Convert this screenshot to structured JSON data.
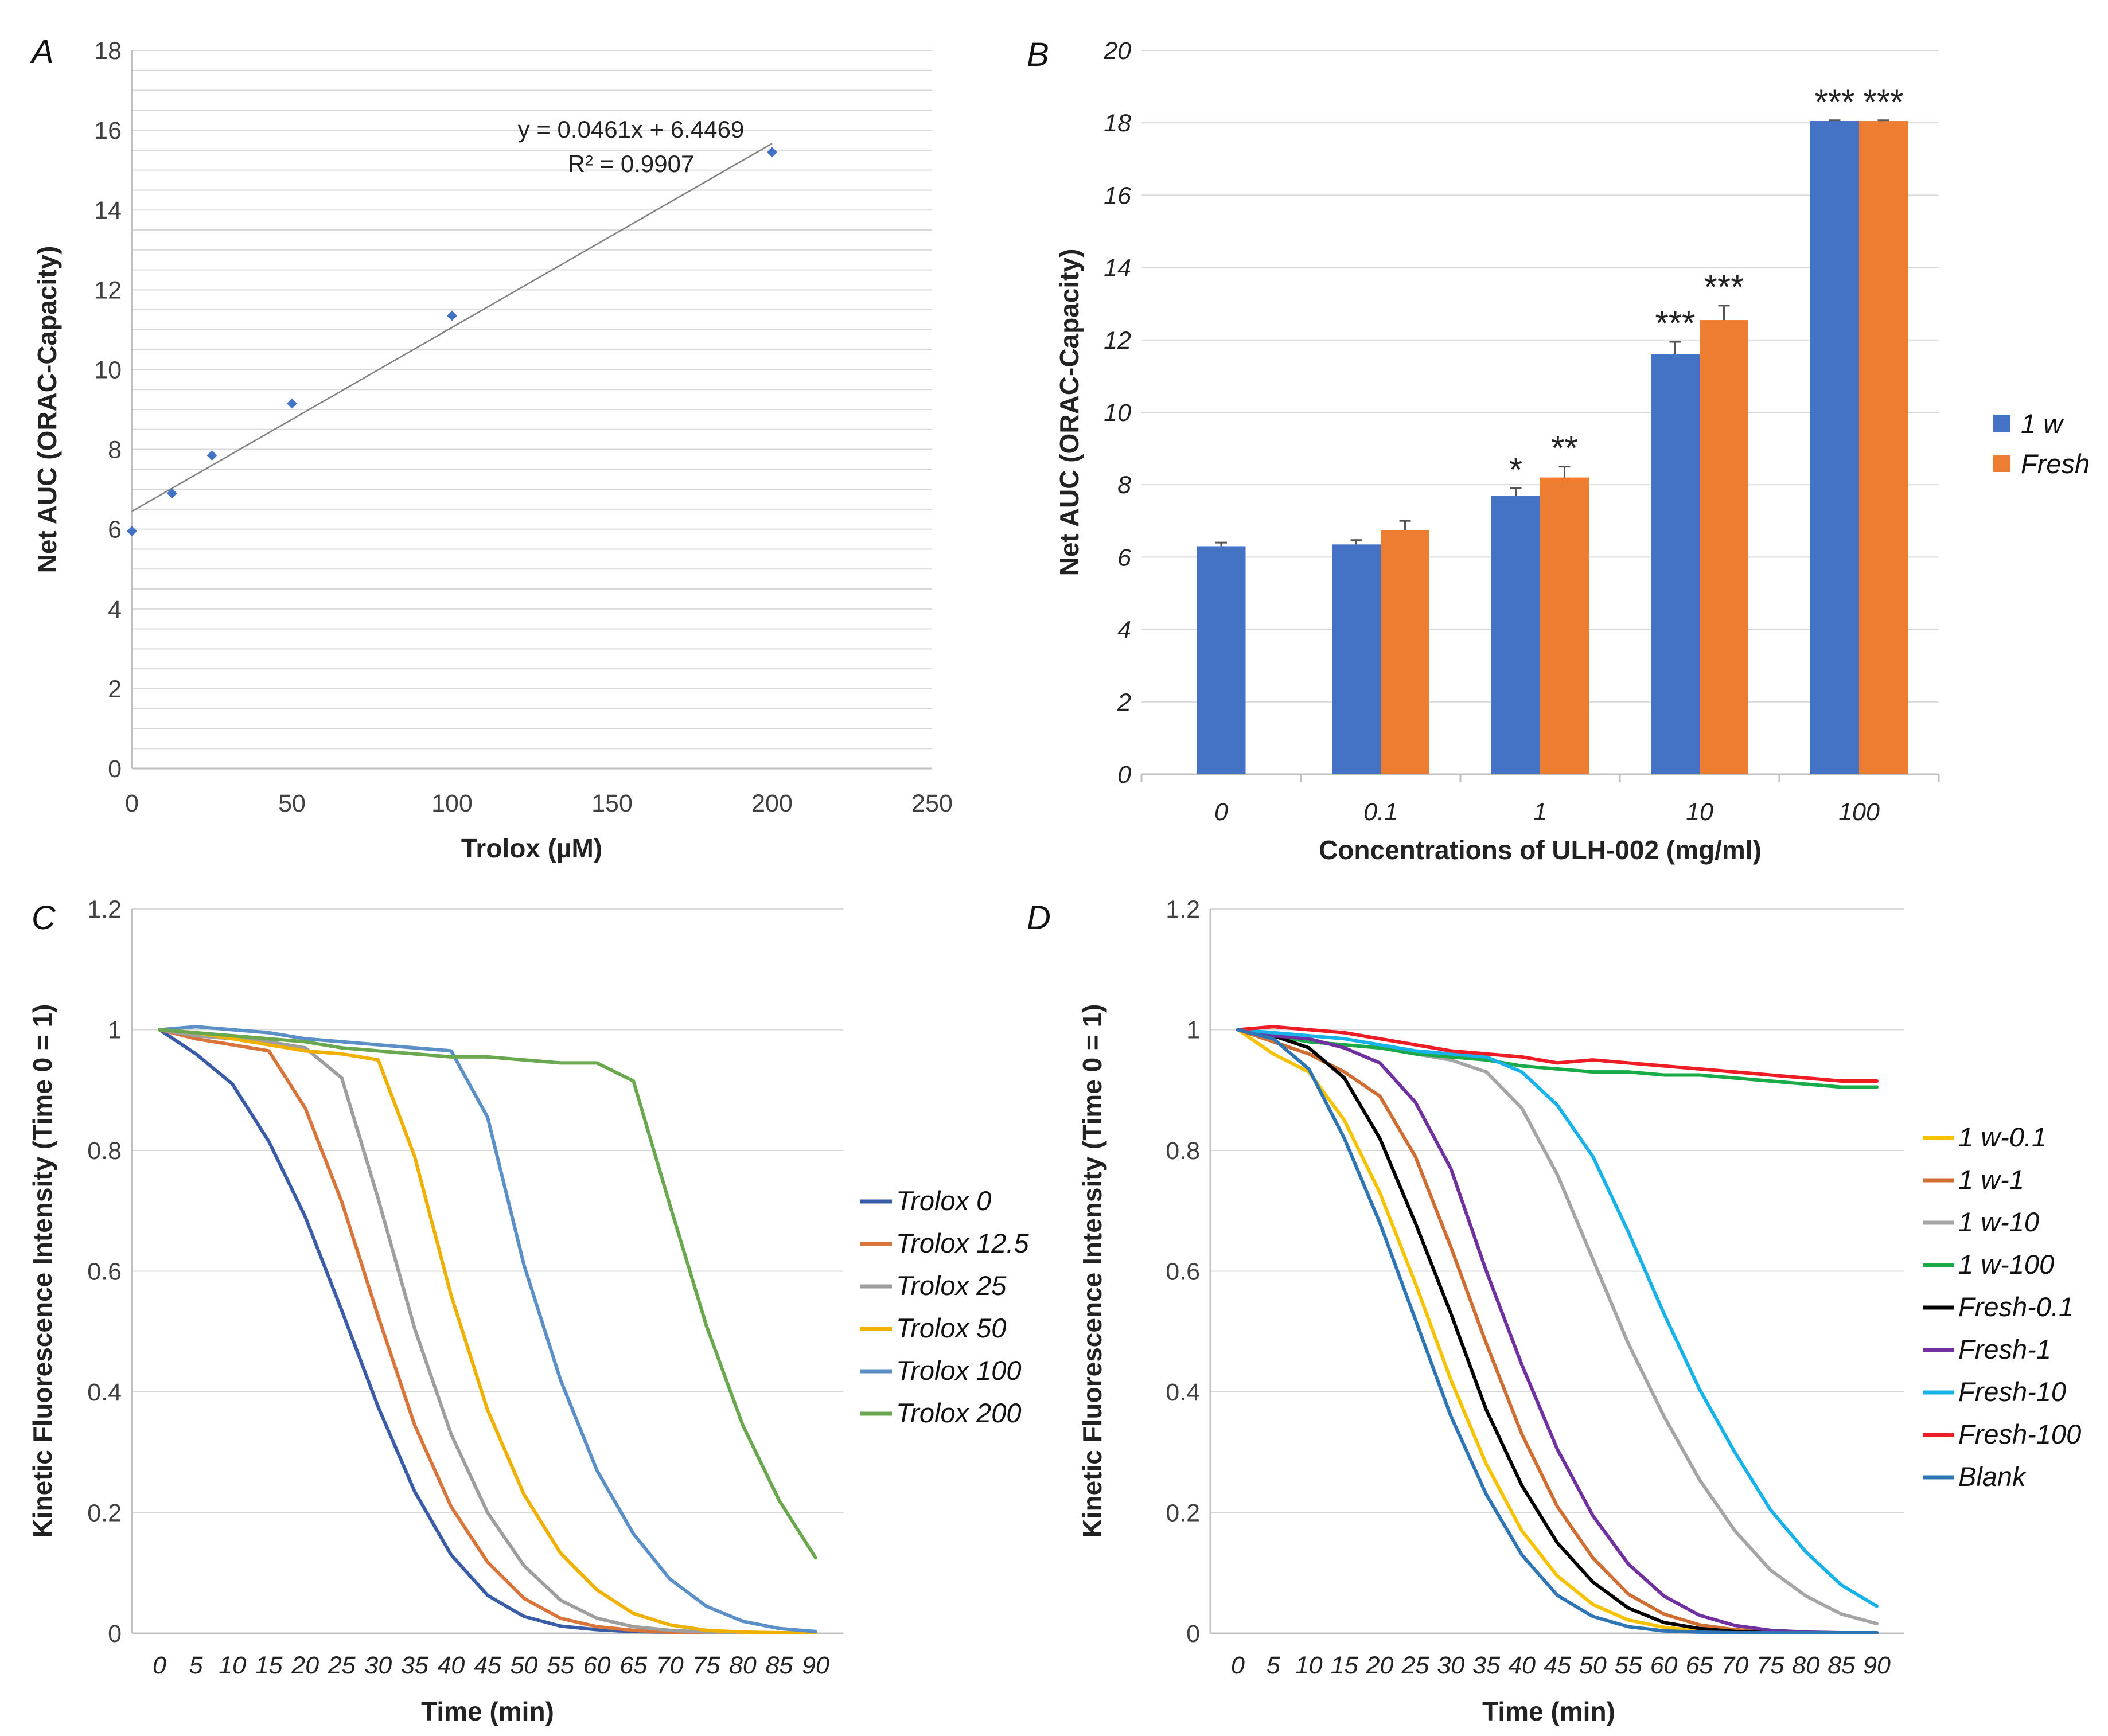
{
  "chart_data": [
    {
      "panel": "A",
      "type": "scatter",
      "xlabel": "Trolox (µM)",
      "ylabel": "Net AUC (ORAC-Capacity)",
      "xlim": [
        0,
        250
      ],
      "ylim": [
        0,
        18
      ],
      "xticks": [
        0,
        50,
        100,
        150,
        200,
        250
      ],
      "yticks": [
        0,
        2,
        4,
        6,
        8,
        10,
        12,
        14,
        16,
        18
      ],
      "grid": true,
      "x": [
        0,
        12.5,
        25,
        50,
        100,
        200
      ],
      "y": [
        5.95,
        6.9,
        7.85,
        9.15,
        11.35,
        15.45
      ],
      "trendline": {
        "slope": 0.0461,
        "intercept": 6.4469,
        "x_range": [
          0,
          200
        ]
      },
      "annotations": [
        "y = 0.0461x + 6.4469",
        "R² = 0.9907"
      ],
      "colors": {
        "points": "#4472c4",
        "trend": "#808080"
      }
    },
    {
      "panel": "B",
      "type": "bar",
      "xlabel": "Concentrations of ULH-002 (mg/ml)",
      "ylabel": "Net AUC (ORAC-Capacity)",
      "ylim": [
        0,
        20
      ],
      "yticks": [
        0,
        2,
        4,
        6,
        8,
        10,
        12,
        14,
        16,
        18,
        20
      ],
      "grid": true,
      "categories": [
        "0",
        "0.1",
        "1",
        "10",
        "100"
      ],
      "series": [
        {
          "name": "1 w",
          "color": "#4472c4",
          "values": [
            6.3,
            6.35,
            7.7,
            11.6,
            18.05
          ],
          "errors": [
            0.1,
            0.12,
            0.2,
            0.35,
            0.02
          ],
          "significance": [
            "",
            "",
            "*",
            "***",
            "***"
          ]
        },
        {
          "name": "Fresh",
          "color": "#ed7d31",
          "values": [
            null,
            6.75,
            8.2,
            12.55,
            18.05
          ],
          "errors": [
            null,
            0.25,
            0.3,
            0.4,
            0.02
          ],
          "significance": [
            "",
            "",
            "**",
            "***",
            "***"
          ]
        }
      ],
      "legend_position": "right"
    },
    {
      "panel": "C",
      "type": "line",
      "xlabel": "Time (min)",
      "ylabel": "Kinetic Fluorescence Intensity (Time 0 = 1)",
      "ylim": [
        0,
        1.2
      ],
      "yticks": [
        "0",
        "0.2",
        "0.4",
        "0.6",
        "0.8",
        "1",
        "1.2"
      ],
      "grid": true,
      "x": [
        0,
        5,
        10,
        15,
        20,
        25,
        30,
        35,
        40,
        45,
        50,
        55,
        60,
        65,
        70,
        75,
        80,
        85,
        90
      ],
      "series": [
        {
          "name": "Trolox 0",
          "color": "#3a5ba8",
          "values": [
            1,
            0.96,
            0.91,
            0.815,
            0.69,
            0.535,
            0.375,
            0.235,
            0.13,
            0.063,
            0.028,
            0.012,
            0.006,
            0.003,
            0.002,
            0.001,
            0.001,
            0.001,
            0.001
          ]
        },
        {
          "name": "Trolox 12.5",
          "color": "#d9743a",
          "values": [
            1,
            0.985,
            0.975,
            0.965,
            0.87,
            0.715,
            0.525,
            0.345,
            0.21,
            0.118,
            0.058,
            0.025,
            0.011,
            0.005,
            0.002,
            0.001,
            0.001,
            0.001,
            0.001
          ]
        },
        {
          "name": "Trolox 25",
          "color": "#9e9e9e",
          "values": [
            1,
            0.99,
            0.985,
            0.98,
            0.97,
            0.92,
            0.72,
            0.505,
            0.33,
            0.2,
            0.112,
            0.055,
            0.025,
            0.011,
            0.005,
            0.002,
            0.001,
            0.001,
            0.001
          ]
        },
        {
          "name": "Trolox 50",
          "color": "#f0b000",
          "values": [
            1,
            0.995,
            0.985,
            0.975,
            0.965,
            0.96,
            0.95,
            0.79,
            0.56,
            0.37,
            0.23,
            0.133,
            0.072,
            0.033,
            0.014,
            0.005,
            0.002,
            0.001,
            0.001
          ]
        },
        {
          "name": "Trolox 100",
          "color": "#5b8fc7",
          "values": [
            1,
            1.005,
            1.0,
            0.995,
            0.985,
            0.98,
            0.975,
            0.97,
            0.965,
            0.855,
            0.61,
            0.42,
            0.27,
            0.165,
            0.09,
            0.045,
            0.02,
            0.008,
            0.003
          ]
        },
        {
          "name": "Trolox 200",
          "color": "#6aa84f",
          "values": [
            1,
            0.995,
            0.99,
            0.985,
            0.98,
            0.97,
            0.965,
            0.96,
            0.955,
            0.955,
            0.95,
            0.945,
            0.945,
            0.915,
            0.71,
            0.51,
            0.345,
            0.22,
            0.125
          ]
        }
      ],
      "legend_position": "right"
    },
    {
      "panel": "D",
      "type": "line",
      "xlabel": "Time (min)",
      "ylabel": "Kinetic Fluorescence Intensity (Time 0 = 1)",
      "ylim": [
        0,
        1.2
      ],
      "yticks": [
        "0",
        "0.2",
        "0.4",
        "0.6",
        "0.8",
        "1",
        "1.2"
      ],
      "grid": true,
      "x": [
        0,
        5,
        10,
        15,
        20,
        25,
        30,
        35,
        40,
        45,
        50,
        55,
        60,
        65,
        70,
        75,
        80,
        85,
        90
      ],
      "series": [
        {
          "name": "1 w-0.1",
          "color": "#f7c200",
          "values": [
            1,
            0.96,
            0.93,
            0.85,
            0.73,
            0.58,
            0.42,
            0.28,
            0.17,
            0.095,
            0.048,
            0.022,
            0.01,
            0.004,
            0.002,
            0.001,
            0.001,
            0.001,
            0.001
          ]
        },
        {
          "name": "1 w-1",
          "color": "#d06d32",
          "values": [
            1,
            0.98,
            0.96,
            0.93,
            0.89,
            0.79,
            0.64,
            0.48,
            0.33,
            0.21,
            0.125,
            0.065,
            0.032,
            0.014,
            0.006,
            0.003,
            0.001,
            0.001,
            0.001
          ]
        },
        {
          "name": "1 w-10",
          "color": "#a5a5a5",
          "values": [
            1,
            0.99,
            0.98,
            0.975,
            0.97,
            0.96,
            0.95,
            0.93,
            0.87,
            0.76,
            0.62,
            0.48,
            0.36,
            0.255,
            0.17,
            0.105,
            0.062,
            0.032,
            0.016
          ]
        },
        {
          "name": "1 w-100",
          "color": "#1aab48",
          "values": [
            1,
            0.99,
            0.98,
            0.975,
            0.97,
            0.96,
            0.955,
            0.95,
            0.94,
            0.935,
            0.93,
            0.93,
            0.925,
            0.925,
            0.92,
            0.915,
            0.91,
            0.905,
            0.905
          ]
        },
        {
          "name": "Fresh-0.1",
          "color": "#000000",
          "values": [
            1,
            0.99,
            0.97,
            0.92,
            0.82,
            0.68,
            0.53,
            0.37,
            0.245,
            0.15,
            0.085,
            0.042,
            0.018,
            0.008,
            0.003,
            0.001,
            0.001,
            0.001,
            0.001
          ]
        },
        {
          "name": "Fresh-1",
          "color": "#7030a0",
          "values": [
            1,
            0.99,
            0.985,
            0.97,
            0.945,
            0.88,
            0.77,
            0.6,
            0.445,
            0.305,
            0.195,
            0.115,
            0.062,
            0.03,
            0.013,
            0.005,
            0.002,
            0.001,
            0.001
          ]
        },
        {
          "name": "Fresh-10",
          "color": "#17b2ea",
          "values": [
            1,
            0.995,
            0.99,
            0.985,
            0.975,
            0.965,
            0.96,
            0.955,
            0.93,
            0.875,
            0.79,
            0.665,
            0.53,
            0.405,
            0.3,
            0.205,
            0.135,
            0.08,
            0.045
          ]
        },
        {
          "name": "Fresh-100",
          "color": "#ee1c24",
          "values": [
            1,
            1.005,
            1.0,
            0.995,
            0.985,
            0.975,
            0.965,
            0.96,
            0.955,
            0.945,
            0.95,
            0.945,
            0.94,
            0.935,
            0.93,
            0.925,
            0.92,
            0.915,
            0.915
          ]
        },
        {
          "name": "Blank",
          "color": "#2e75b6",
          "values": [
            1,
            0.985,
            0.935,
            0.82,
            0.68,
            0.52,
            0.36,
            0.23,
            0.13,
            0.063,
            0.028,
            0.011,
            0.004,
            0.002,
            0.001,
            0.001,
            0.001,
            0.001,
            0.001
          ]
        }
      ],
      "legend_position": "right"
    }
  ]
}
